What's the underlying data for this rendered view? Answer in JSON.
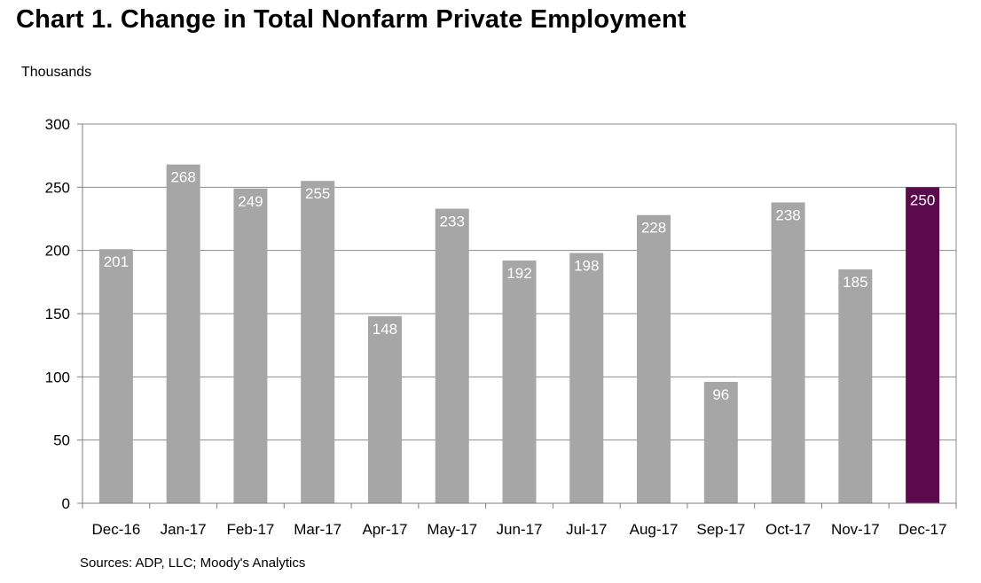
{
  "chart_data": {
    "type": "bar",
    "title": "Chart 1. Change in Total Nonfarm Private Employment",
    "ylabel": "Thousands",
    "xlabel": "",
    "source": "Sources: ADP, LLC; Moody's Analytics",
    "categories": [
      "Dec-16",
      "Jan-17",
      "Feb-17",
      "Mar-17",
      "Apr-17",
      "May-17",
      "Jun-17",
      "Jul-17",
      "Aug-17",
      "Sep-17",
      "Oct-17",
      "Nov-17",
      "Dec-17"
    ],
    "values": [
      201,
      268,
      249,
      255,
      148,
      233,
      192,
      198,
      228,
      96,
      238,
      185,
      250
    ],
    "data_labels": [
      "201",
      "268",
      "249",
      "255",
      "148",
      "233",
      "192",
      "198",
      "228",
      "96",
      "238",
      "185",
      "250"
    ],
    "ylim": [
      0,
      300
    ],
    "yticks": [
      0,
      50,
      100,
      150,
      200,
      250,
      300
    ],
    "ytick_labels": [
      "0",
      "50",
      "100",
      "150",
      "200",
      "250",
      "300"
    ],
    "grid": true,
    "legend": "none",
    "colors": {
      "bar": "#a6a6a6",
      "highlight_bar": "#5c0a4e",
      "highlight_index": 12,
      "data_label": "#ffffff",
      "gridline": "#8c8c8c",
      "axis": "#7f7f7f"
    }
  }
}
